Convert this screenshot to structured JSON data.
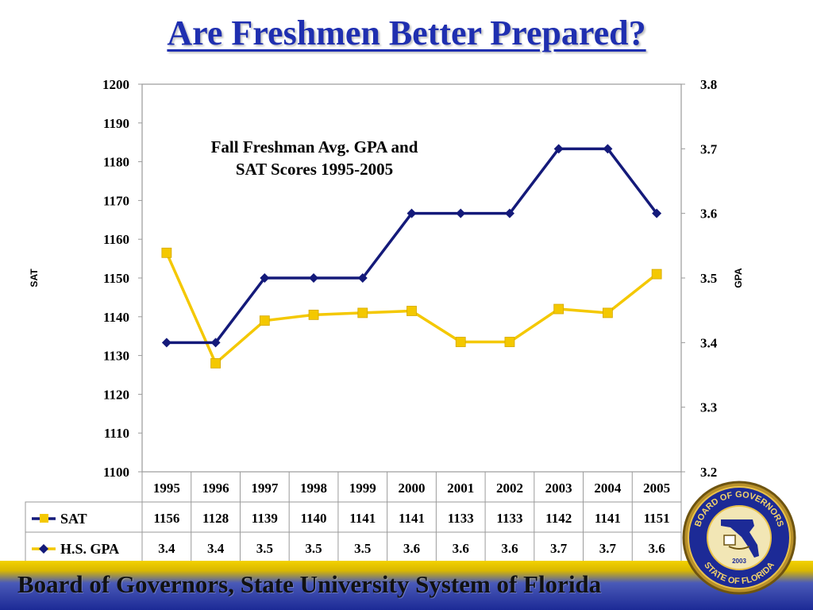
{
  "slide": {
    "title": "Are Freshmen Better Prepared?",
    "footer": "Board of Governors, State University System of Florida"
  },
  "seal": {
    "top_text": "BOARD OF GOVERNORS",
    "bottom_text": "STATE OF FLORIDA",
    "year": "2003"
  },
  "colors": {
    "title": "#1f2fb0",
    "sat_line": "#f4c800",
    "gpa_line": "#141a7a",
    "footer_gold": "#f3d200",
    "footer_blue": "#1c2a96"
  },
  "chart_data": {
    "type": "line",
    "title_lines": [
      "Fall Freshman Avg. GPA and",
      "SAT Scores 1995-2005"
    ],
    "y_left_label": "SAT",
    "y_right_label": "GPA",
    "y_left_range": [
      1100,
      1200
    ],
    "y_left_ticks": [
      "1100",
      "1110",
      "1120",
      "1130",
      "1140",
      "1150",
      "1160",
      "1170",
      "1180",
      "1190",
      "1200"
    ],
    "y_right_range": [
      3.2,
      3.8
    ],
    "y_right_ticks": [
      "3.2",
      "3.3",
      "3.4",
      "3.5",
      "3.6",
      "3.7",
      "3.8"
    ],
    "categories": [
      "1995",
      "1996",
      "1997",
      "1998",
      "1999",
      "2000",
      "2001",
      "2002",
      "2003",
      "2004",
      "2005"
    ],
    "series": [
      {
        "name": "SAT",
        "axis": "left",
        "marker": "square",
        "values": [
          1156.5,
          1128,
          1139,
          1140.5,
          1141,
          1141.5,
          1133.5,
          1133.5,
          1142,
          1141,
          1151
        ],
        "table_values": [
          "1156",
          "1128",
          "1139",
          "1140",
          "1141",
          "1141",
          "1133",
          "1133",
          "1142",
          "1141",
          "1151"
        ]
      },
      {
        "name": "H.S. GPA",
        "axis": "right",
        "marker": "diamond",
        "values": [
          3.4,
          3.4,
          3.5,
          3.5,
          3.5,
          3.6,
          3.6,
          3.6,
          3.7,
          3.7,
          3.6
        ],
        "table_values": [
          "3.4",
          "3.4",
          "3.5",
          "3.5",
          "3.5",
          "3.6",
          "3.6",
          "3.6",
          "3.7",
          "3.7",
          "3.6"
        ]
      }
    ],
    "grid": false
  }
}
